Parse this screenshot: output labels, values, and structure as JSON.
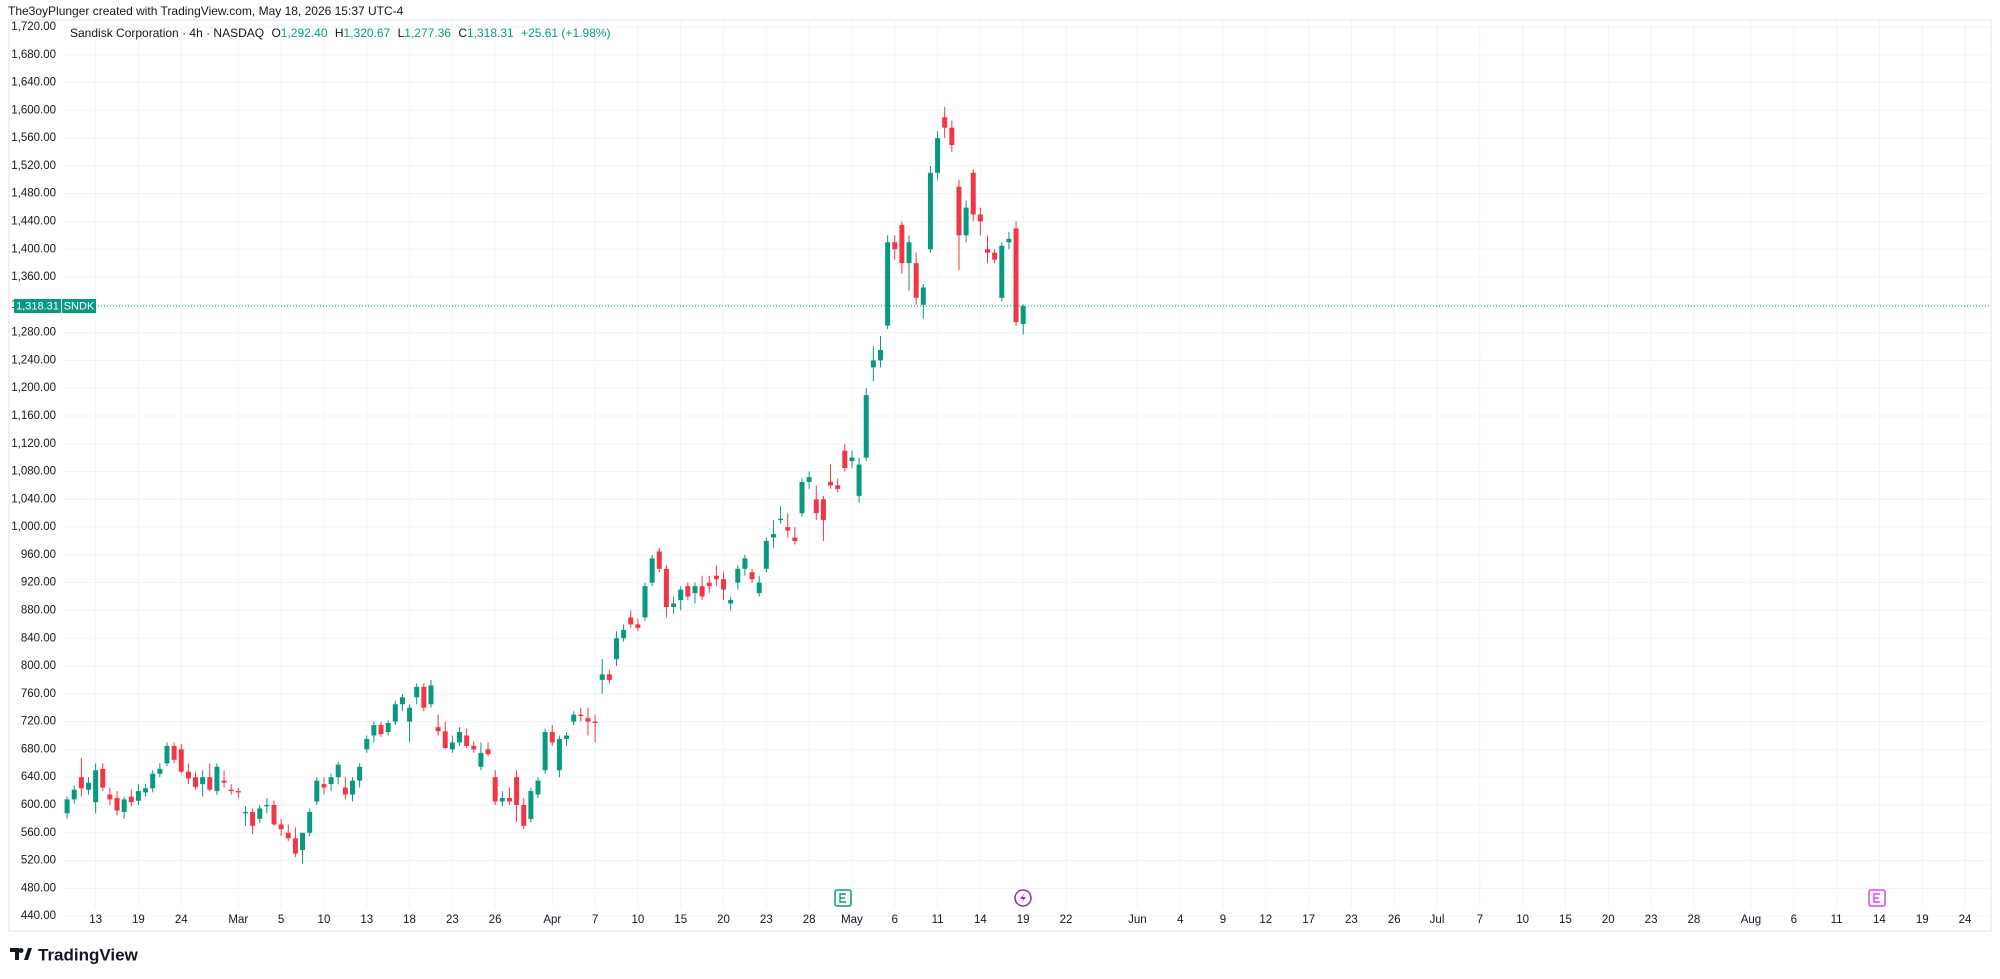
{
  "credit": "The3oyPlunger created with TradingView.com, May 18, 2026 15:37 UTC-4",
  "brand": "TradingView",
  "legend": {
    "symbol": "Sandisk Corporation · 4h · NASDAQ",
    "o_label": "O",
    "o": "1,292.40",
    "h_label": "H",
    "h": "1,320.67",
    "l_label": "L",
    "l": "1,277.36",
    "c_label": "C",
    "c": "1,318.31",
    "change": "+25.61 (+1.98%)"
  },
  "chart_data": {
    "type": "candlestick",
    "up_color": "#089981",
    "down_color": "#f23645",
    "last_price_label": "1,318.31",
    "ticker": "SNDK",
    "grid": true,
    "xlim": [
      -8,
      269.5
    ],
    "ylim": [
      420,
      1730
    ],
    "open": [
      588,
      608,
      640,
      622,
      604,
      652,
      615,
      610,
      590,
      612,
      606,
      618,
      624,
      645,
      660,
      685,
      680,
      648,
      640,
      630,
      640,
      620,
      635,
      622,
      620,
      588,
      590,
      580,
      598,
      600,
      572,
      560,
      552,
      535,
      560,
      605,
      630,
      630,
      640,
      625,
      615,
      635,
      680,
      700,
      715,
      705,
      720,
      745,
      720,
      755,
      770,
      745,
      712,
      706,
      680,
      690,
      700,
      685,
      655,
      680,
      640,
      605,
      610,
      640,
      600,
      580,
      615,
      650,
      705,
      650,
      695,
      720,
      730,
      725,
      720,
      780,
      788,
      810,
      840,
      870,
      860,
      870,
      920,
      965,
      940,
      885,
      895,
      915,
      905,
      915,
      920,
      930,
      925,
      890,
      920,
      940,
      935,
      905,
      940,
      985,
      1010,
      1000,
      985,
      1020,
      1065,
      1040,
      1040,
      1065,
      1060,
      1110,
      1095,
      1045,
      1100,
      1230,
      1240,
      1290,
      1410,
      1435,
      1380,
      1380,
      1320,
      1400,
      1510,
      1590,
      1575,
      1490,
      1420,
      1510,
      1450,
      1400,
      1395,
      1330,
      1410,
      1430,
      1292.4
    ],
    "high": [
      612,
      628,
      668,
      640,
      660,
      660,
      625,
      620,
      612,
      622,
      630,
      630,
      650,
      660,
      690,
      690,
      688,
      660,
      648,
      650,
      660,
      660,
      650,
      630,
      625,
      598,
      595,
      600,
      610,
      606,
      580,
      572,
      568,
      560,
      595,
      640,
      640,
      645,
      662,
      640,
      640,
      660,
      700,
      720,
      720,
      722,
      750,
      760,
      745,
      775,
      775,
      780,
      730,
      720,
      700,
      712,
      710,
      692,
      690,
      690,
      650,
      620,
      625,
      650,
      610,
      625,
      640,
      710,
      715,
      700,
      705,
      735,
      740,
      740,
      730,
      810,
      795,
      850,
      860,
      880,
      868,
      920,
      960,
      970,
      945,
      900,
      915,
      920,
      920,
      930,
      930,
      945,
      935,
      900,
      945,
      960,
      940,
      930,
      985,
      1010,
      1030,
      1020,
      1000,
      1070,
      1080,
      1060,
      1045,
      1090,
      1070,
      1120,
      1110,
      1100,
      1200,
      1260,
      1275,
      1420,
      1420,
      1440,
      1420,
      1395,
      1350,
      1520,
      1570,
      1605,
      1585,
      1500,
      1470,
      1515,
      1460,
      1420,
      1400,
      1410,
      1425,
      1440,
      1320.67
    ],
    "low": [
      580,
      602,
      612,
      615,
      588,
      620,
      600,
      585,
      580,
      598,
      600,
      612,
      618,
      640,
      656,
      660,
      645,
      630,
      622,
      612,
      620,
      615,
      625,
      615,
      610,
      570,
      558,
      574,
      588,
      570,
      555,
      548,
      525,
      515,
      555,
      600,
      615,
      620,
      630,
      608,
      605,
      625,
      675,
      690,
      698,
      700,
      715,
      735,
      690,
      745,
      735,
      740,
      700,
      680,
      675,
      685,
      682,
      675,
      650,
      670,
      600,
      598,
      600,
      575,
      565,
      575,
      610,
      645,
      685,
      640,
      685,
      715,
      720,
      700,
      690,
      760,
      775,
      800,
      835,
      855,
      850,
      865,
      915,
      935,
      870,
      875,
      880,
      895,
      890,
      895,
      905,
      915,
      895,
      880,
      910,
      930,
      920,
      900,
      935,
      970,
      1005,
      985,
      975,
      1015,
      1055,
      1010,
      980,
      1055,
      1050,
      1080,
      1085,
      1035,
      1095,
      1210,
      1230,
      1285,
      1385,
      1365,
      1340,
      1320,
      1300,
      1395,
      1500,
      1560,
      1540,
      1370,
      1410,
      1440,
      1420,
      1380,
      1380,
      1325,
      1400,
      1290,
      1277.36
    ],
    "close": [
      608,
      622,
      624,
      632,
      650,
      625,
      608,
      592,
      608,
      604,
      620,
      624,
      645,
      652,
      685,
      665,
      648,
      638,
      626,
      640,
      622,
      655,
      632,
      620,
      618,
      590,
      570,
      595,
      600,
      572,
      565,
      552,
      530,
      560,
      590,
      635,
      625,
      640,
      658,
      615,
      635,
      655,
      695,
      715,
      702,
      718,
      745,
      755,
      740,
      770,
      740,
      772,
      706,
      682,
      690,
      705,
      685,
      680,
      675,
      673,
      605,
      610,
      605,
      600,
      570,
      620,
      635,
      705,
      690,
      695,
      700,
      730,
      728,
      720,
      718,
      788,
      780,
      840,
      852,
      860,
      855,
      915,
      955,
      940,
      885,
      890,
      910,
      900,
      915,
      900,
      915,
      925,
      910,
      895,
      940,
      955,
      925,
      920,
      980,
      990,
      1012,
      995,
      980,
      1065,
      1072,
      1020,
      1010,
      1060,
      1055,
      1085,
      1100,
      1090,
      1190,
      1240,
      1255,
      1410,
      1400,
      1380,
      1410,
      1330,
      1345,
      1510,
      1560,
      1575,
      1550,
      1420,
      1460,
      1450,
      1440,
      1395,
      1385,
      1405,
      1415,
      1295,
      1318.31
    ],
    "yticks": [
      {
        "value": 440,
        "label": "440.00"
      },
      {
        "value": 480,
        "label": "480.00"
      },
      {
        "value": 520,
        "label": "520.00"
      },
      {
        "value": 560,
        "label": "560.00"
      },
      {
        "value": 600,
        "label": "600.00"
      },
      {
        "value": 640,
        "label": "640.00"
      },
      {
        "value": 680,
        "label": "680.00"
      },
      {
        "value": 720,
        "label": "720.00"
      },
      {
        "value": 760,
        "label": "760.00"
      },
      {
        "value": 800,
        "label": "800.00"
      },
      {
        "value": 840,
        "label": "840.00"
      },
      {
        "value": 880,
        "label": "880.00"
      },
      {
        "value": 920,
        "label": "920.00"
      },
      {
        "value": 960,
        "label": "960.00"
      },
      {
        "value": 1000,
        "label": "1,000.00"
      },
      {
        "value": 1040,
        "label": "1,040.00"
      },
      {
        "value": 1080,
        "label": "1,080.00"
      },
      {
        "value": 1120,
        "label": "1,120.00"
      },
      {
        "value": 1160,
        "label": "1,160.00"
      },
      {
        "value": 1200,
        "label": "1,200.00"
      },
      {
        "value": 1240,
        "label": "1,240.00"
      },
      {
        "value": 1280,
        "label": "1,280.00"
      },
      {
        "value": 1320,
        "label": "1,320.00"
      },
      {
        "value": 1360,
        "label": "1,360.00"
      },
      {
        "value": 1400,
        "label": "1,400.00"
      },
      {
        "value": 1440,
        "label": "1,440.00"
      },
      {
        "value": 1480,
        "label": "1,480.00"
      },
      {
        "value": 1520,
        "label": "1,520.00"
      },
      {
        "value": 1560,
        "label": "1,560.00"
      },
      {
        "value": 1600,
        "label": "1,600.00"
      },
      {
        "value": 1640,
        "label": "1,640.00"
      },
      {
        "value": 1680,
        "label": "1,680.00"
      },
      {
        "value": 1720,
        "label": "1,720.00"
      }
    ],
    "xticks": [
      {
        "value": 4,
        "label": "13"
      },
      {
        "value": 10,
        "label": "19"
      },
      {
        "value": 16,
        "label": "24"
      },
      {
        "value": 24,
        "label": "Mar"
      },
      {
        "value": 30,
        "label": "5"
      },
      {
        "value": 36,
        "label": "10"
      },
      {
        "value": 42,
        "label": "13"
      },
      {
        "value": 48,
        "label": "18"
      },
      {
        "value": 54,
        "label": "23"
      },
      {
        "value": 60,
        "label": "26"
      },
      {
        "value": 68,
        "label": "Apr"
      },
      {
        "value": 74,
        "label": "7"
      },
      {
        "value": 80,
        "label": "10"
      },
      {
        "value": 86,
        "label": "15"
      },
      {
        "value": 92,
        "label": "20"
      },
      {
        "value": 98,
        "label": "23"
      },
      {
        "value": 104,
        "label": "28"
      },
      {
        "value": 110,
        "label": "May"
      },
      {
        "value": 116,
        "label": "6"
      },
      {
        "value": 122,
        "label": "11"
      },
      {
        "value": 128,
        "label": "14"
      },
      {
        "value": 134,
        "label": "19"
      },
      {
        "value": 140,
        "label": "22"
      },
      {
        "value": 150,
        "label": "Jun"
      },
      {
        "value": 156,
        "label": "4"
      },
      {
        "value": 162,
        "label": "9"
      },
      {
        "value": 168,
        "label": "12"
      },
      {
        "value": 174,
        "label": "17"
      },
      {
        "value": 180,
        "label": "23"
      },
      {
        "value": 186,
        "label": "26"
      },
      {
        "value": 192,
        "label": "Jul"
      },
      {
        "value": 198,
        "label": "7"
      },
      {
        "value": 204,
        "label": "10"
      },
      {
        "value": 210,
        "label": "15"
      },
      {
        "value": 216,
        "label": "20"
      },
      {
        "value": 222,
        "label": "23"
      },
      {
        "value": 228,
        "label": "28"
      },
      {
        "value": 236,
        "label": "Aug"
      },
      {
        "value": 242,
        "label": "6"
      },
      {
        "value": 248,
        "label": "11"
      },
      {
        "value": 254,
        "label": "14"
      },
      {
        "value": 260,
        "label": "19"
      },
      {
        "value": 266,
        "label": "24"
      }
    ]
  }
}
